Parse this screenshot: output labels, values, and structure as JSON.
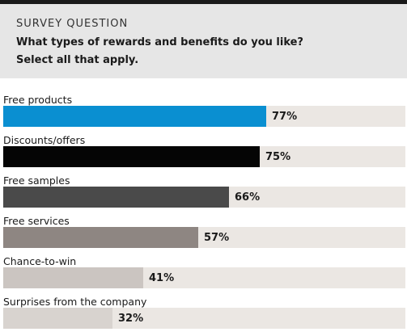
{
  "header": {
    "kicker": "SURVEY QUESTION",
    "question_line1": "What types of rewards and benefits do you like?",
    "question_line2": "Select all that apply."
  },
  "chart_data": {
    "type": "bar",
    "orientation": "horizontal",
    "categories": [
      "Free products",
      "Discounts/offers",
      "Free samples",
      "Free services",
      "Chance-to-win",
      "Surprises from the company"
    ],
    "values": [
      77,
      75,
      66,
      57,
      41,
      32
    ],
    "value_labels": [
      "77%",
      "75%",
      "66%",
      "57%",
      "41%",
      "32%"
    ],
    "xlim": [
      0,
      100
    ],
    "unit": "%",
    "bar_colors": [
      "#0a8fd1",
      "#050505",
      "#4a4a4a",
      "#8e8682",
      "#cbc5c1",
      "#d8d3cf"
    ],
    "track_color": "#ebe7e3",
    "grid": false,
    "legend": "none"
  }
}
